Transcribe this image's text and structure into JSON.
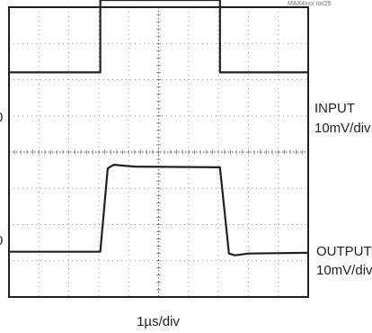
{
  "figure_code": "MAX4xxx toc25",
  "chart_data": {
    "type": "line",
    "title": "",
    "xlabel": "1µs/div",
    "ylabel": "",
    "grid": true,
    "x_divisions": 10,
    "y_divisions": 8,
    "xlim": [
      0,
      10
    ],
    "ylim": [
      0,
      8
    ],
    "series": [
      {
        "name": "INPUT",
        "label_line1": "INPUT",
        "label_line2": "10mV/div",
        "x": [
          0,
          3.05,
          3.05,
          7.05,
          7.05,
          10
        ],
        "y": [
          6.2,
          6.2,
          8.25,
          8.25,
          6.2,
          6.2
        ]
      },
      {
        "name": "OUTPUT",
        "label_line1": "OUTPUT",
        "label_line2": "10mV/div",
        "x": [
          0,
          3.05,
          3.3,
          3.5,
          4.2,
          7.05,
          7.35,
          7.55,
          8.0,
          10
        ],
        "y": [
          1.25,
          1.25,
          3.55,
          3.65,
          3.6,
          3.58,
          1.2,
          1.15,
          1.2,
          1.22
        ]
      }
    ],
    "left_markers": [
      "0",
      "0"
    ]
  }
}
